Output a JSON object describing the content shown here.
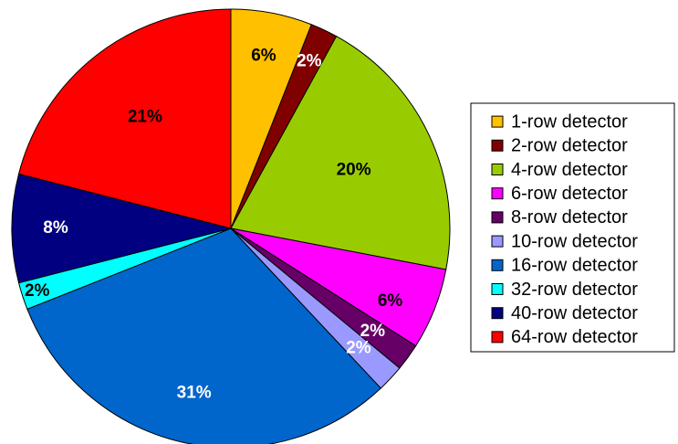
{
  "chart_data": {
    "type": "pie",
    "legend_position": "right",
    "slices": [
      {
        "label": "1-row detector",
        "value": 6,
        "display": "6%",
        "color": "#FFC000",
        "text_color": "#000000"
      },
      {
        "label": "2-row detector",
        "value": 2,
        "display": "2%",
        "color": "#800000",
        "text_color": "#FFFFFF"
      },
      {
        "label": "4-row detector",
        "value": 20,
        "display": "20%",
        "color": "#99CC00",
        "text_color": "#000000"
      },
      {
        "label": "6-row detector",
        "value": 6,
        "display": "6%",
        "color": "#FF00FF",
        "text_color": "#000000"
      },
      {
        "label": "8-row detector",
        "value": 2,
        "display": "2%",
        "color": "#660066",
        "text_color": "#FFFFFF"
      },
      {
        "label": "10-row detector",
        "value": 2,
        "display": "2%",
        "color": "#9999FF",
        "text_color": "#FFFFFF"
      },
      {
        "label": "16-row detector",
        "value": 31,
        "display": "31%",
        "color": "#0066CC",
        "text_color": "#FFFFFF"
      },
      {
        "label": "32-row detector",
        "value": 2,
        "display": "2%",
        "color": "#00FFFF",
        "text_color": "#000000"
      },
      {
        "label": "40-row detector",
        "value": 8,
        "display": "8%",
        "color": "#000080",
        "text_color": "#FFFFFF"
      },
      {
        "label": "64-row detector",
        "value": 21,
        "display": "21%",
        "color": "#FF0000",
        "text_color": "#000000"
      }
    ]
  }
}
